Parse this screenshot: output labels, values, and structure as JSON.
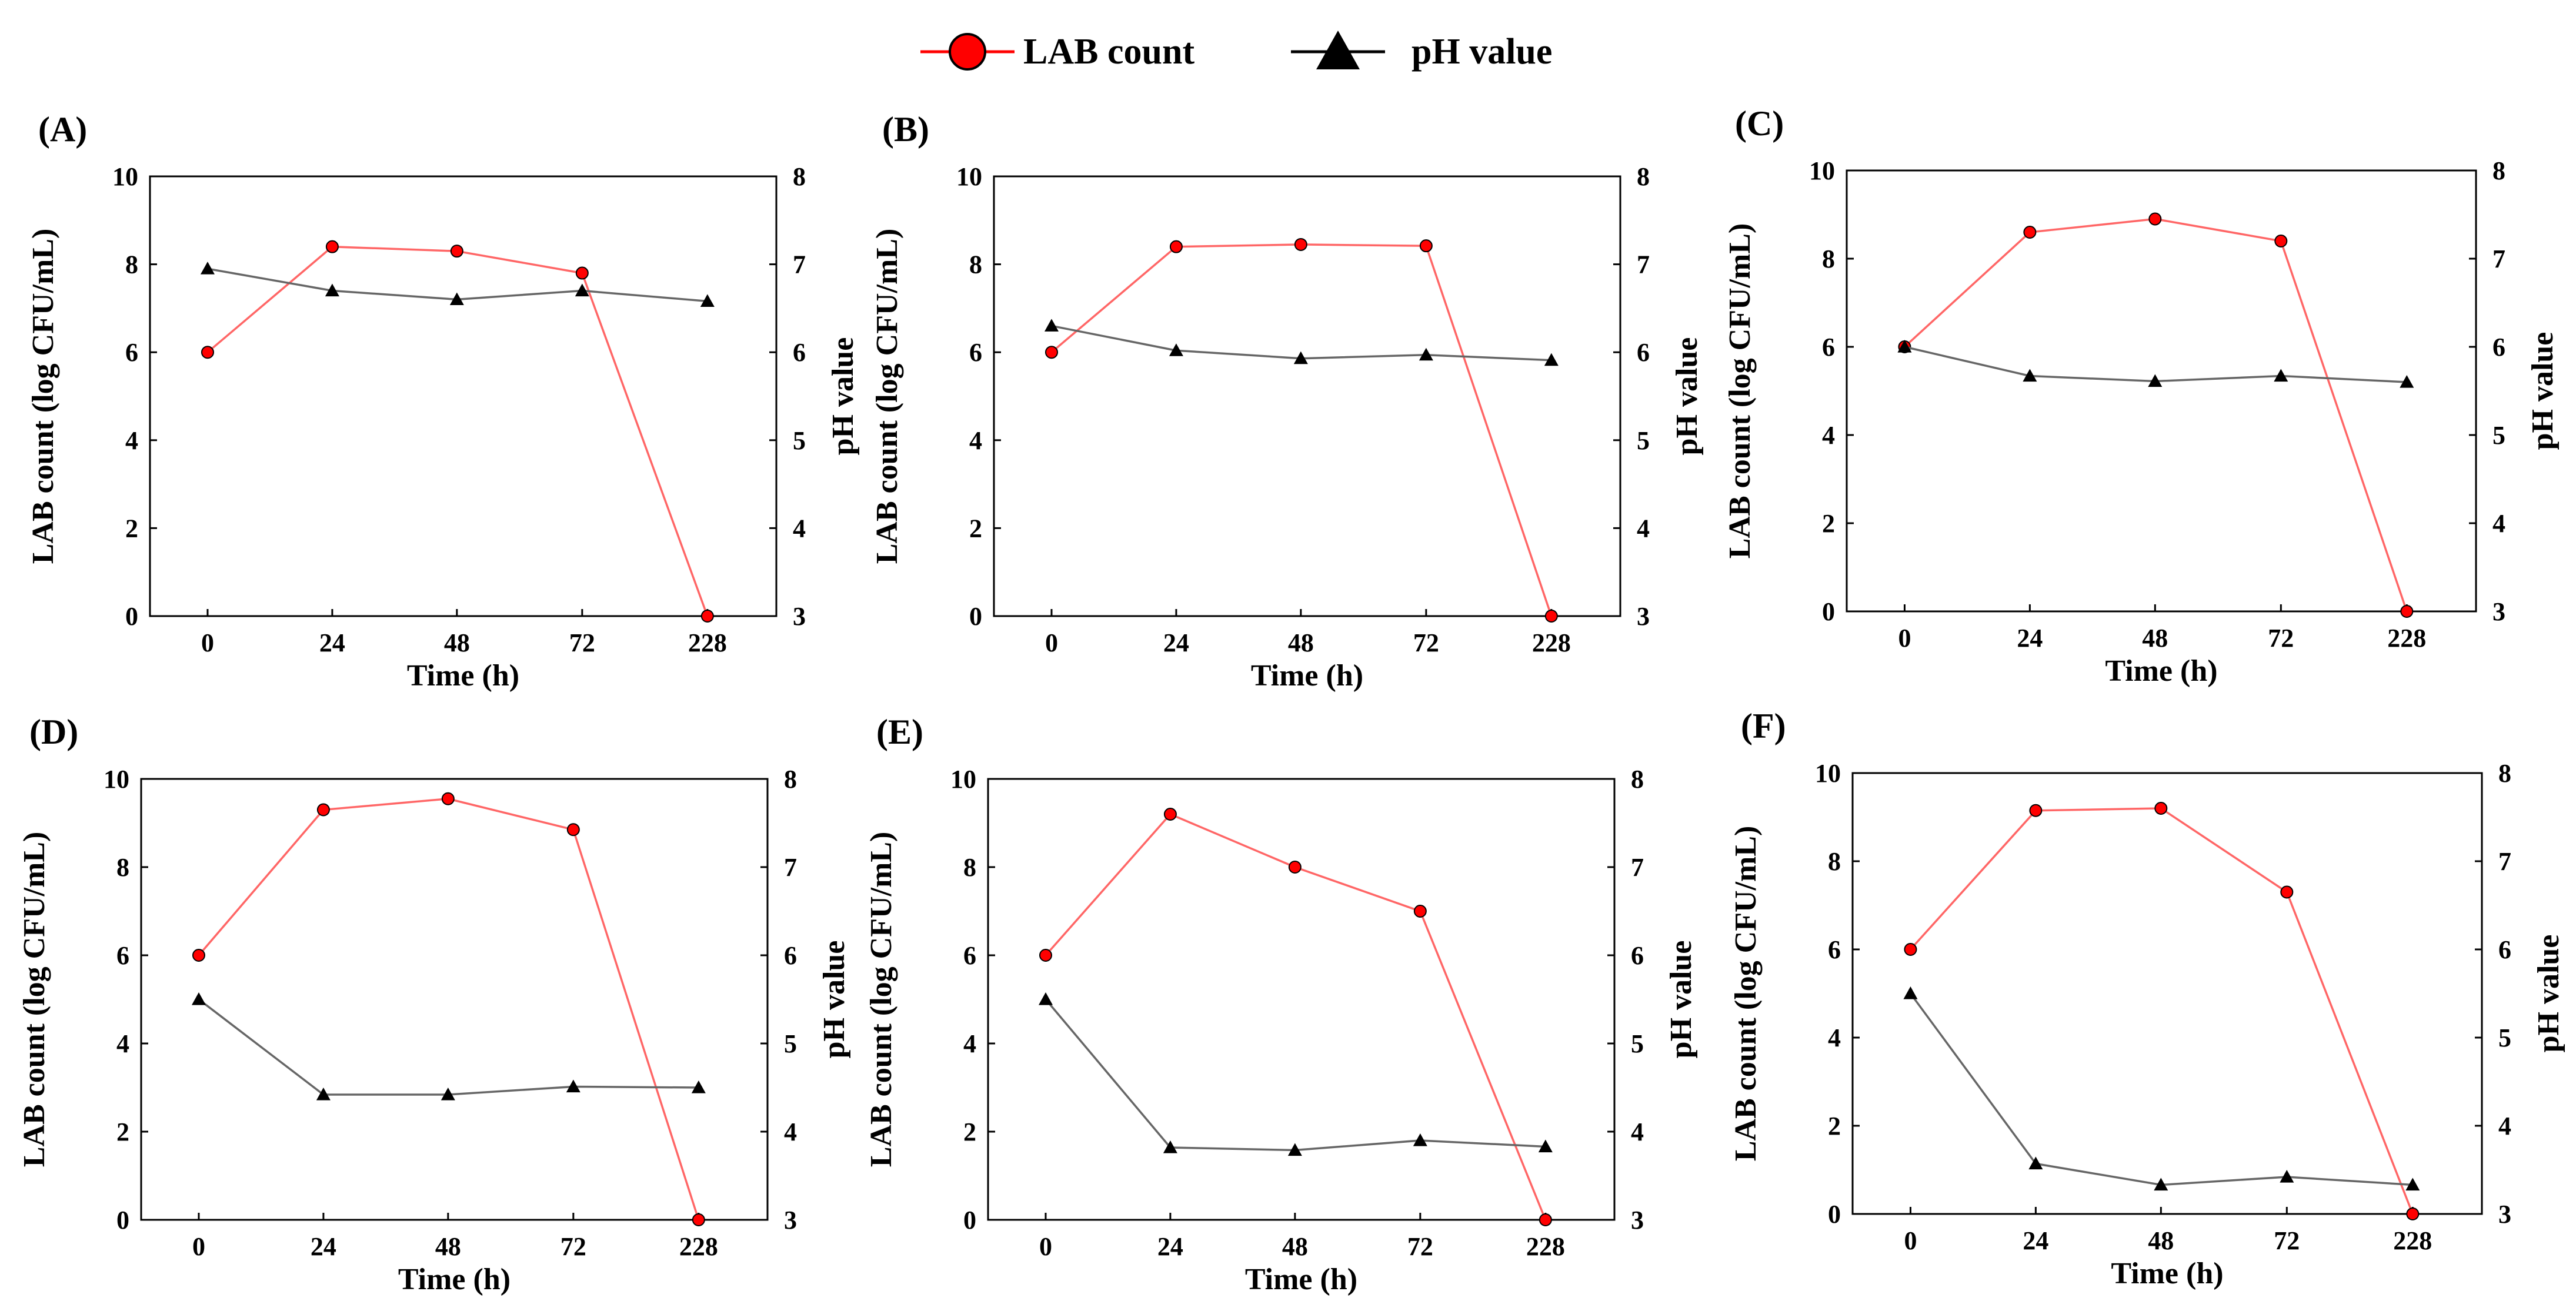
{
  "legend": {
    "lab_label": "LAB count",
    "ph_label": "pH value"
  },
  "colors": {
    "lab": "#ff0000",
    "lab_line": "#ff6666",
    "ph": "#000000",
    "ph_line": "#666666"
  },
  "chart_data": [
    {
      "type": "line",
      "panel_label": "(A)",
      "categories": [
        "0",
        "24",
        "48",
        "72",
        "228"
      ],
      "xlabel": "Time (h)",
      "ylabel": "LAB count (log CFU/mL)",
      "y2label": "pH value",
      "ylim": [
        0,
        10
      ],
      "y2lim": [
        3,
        8
      ],
      "yticks": [
        0,
        2,
        4,
        6,
        8,
        10
      ],
      "y2ticks": [
        3,
        4,
        5,
        6,
        7,
        8
      ],
      "series": [
        {
          "name": "LAB count",
          "axis": "left",
          "values": [
            6.0,
            8.4,
            8.3,
            7.8,
            0.0
          ]
        },
        {
          "name": "pH value",
          "axis": "right",
          "values": [
            6.95,
            6.7,
            6.6,
            6.7,
            6.58
          ]
        }
      ]
    },
    {
      "type": "line",
      "panel_label": "(B)",
      "categories": [
        "0",
        "24",
        "48",
        "72",
        "228"
      ],
      "xlabel": "Time (h)",
      "ylabel": "LAB count (log CFU/mL)",
      "y2label": "pH value",
      "ylim": [
        0,
        10
      ],
      "y2lim": [
        3,
        8
      ],
      "yticks": [
        0,
        2,
        4,
        6,
        8,
        10
      ],
      "y2ticks": [
        3,
        4,
        5,
        6,
        7,
        8
      ],
      "series": [
        {
          "name": "LAB count",
          "axis": "left",
          "values": [
            6.0,
            8.4,
            8.45,
            8.42,
            0.0
          ]
        },
        {
          "name": "pH value",
          "axis": "right",
          "values": [
            6.3,
            6.02,
            5.93,
            5.97,
            5.91
          ]
        }
      ]
    },
    {
      "type": "line",
      "panel_label": "(C)",
      "categories": [
        "0",
        "24",
        "48",
        "72",
        "228"
      ],
      "xlabel": "Time (h)",
      "ylabel": "LAB count (log CFU/mL)",
      "y2label": "pH value",
      "ylim": [
        0,
        10
      ],
      "y2lim": [
        3,
        8
      ],
      "yticks": [
        0,
        2,
        4,
        6,
        8,
        10
      ],
      "y2ticks": [
        3,
        4,
        5,
        6,
        7,
        8
      ],
      "series": [
        {
          "name": "LAB count",
          "axis": "left",
          "values": [
            6.0,
            8.6,
            8.9,
            8.4,
            0.0
          ]
        },
        {
          "name": "pH value",
          "axis": "right",
          "values": [
            6.0,
            5.67,
            5.61,
            5.67,
            5.6
          ]
        }
      ]
    },
    {
      "type": "line",
      "panel_label": "(D)",
      "categories": [
        "0",
        "24",
        "48",
        "72",
        "228"
      ],
      "xlabel": "Time (h)",
      "ylabel": "LAB count (log CFU/mL)",
      "y2label": "pH value",
      "ylim": [
        0,
        10
      ],
      "y2lim": [
        3,
        8
      ],
      "yticks": [
        0,
        2,
        4,
        6,
        8,
        10
      ],
      "y2ticks": [
        3,
        4,
        5,
        6,
        7,
        8
      ],
      "series": [
        {
          "name": "LAB count",
          "axis": "left",
          "values": [
            6.0,
            9.3,
            9.55,
            8.85,
            0.0
          ]
        },
        {
          "name": "pH value",
          "axis": "right",
          "values": [
            5.5,
            4.42,
            4.42,
            4.51,
            4.5
          ]
        }
      ]
    },
    {
      "type": "line",
      "panel_label": "(E)",
      "categories": [
        "0",
        "24",
        "48",
        "72",
        "228"
      ],
      "xlabel": "Time (h)",
      "ylabel": "LAB count (log CFU/mL)",
      "y2label": "pH value",
      "ylim": [
        0,
        10
      ],
      "y2lim": [
        3,
        8
      ],
      "yticks": [
        0,
        2,
        4,
        6,
        8,
        10
      ],
      "y2ticks": [
        3,
        4,
        5,
        6,
        7,
        8
      ],
      "series": [
        {
          "name": "LAB count",
          "axis": "left",
          "values": [
            6.0,
            9.2,
            8.0,
            7.0,
            0.0
          ]
        },
        {
          "name": "pH value",
          "axis": "right",
          "values": [
            5.5,
            3.82,
            3.79,
            3.9,
            3.83
          ]
        }
      ]
    },
    {
      "type": "line",
      "panel_label": "(F)",
      "categories": [
        "0",
        "24",
        "48",
        "72",
        "228"
      ],
      "xlabel": "Time (h)",
      "ylabel": "LAB count (log CFU/mL)",
      "y2label": "pH value",
      "ylim": [
        0,
        10
      ],
      "y2lim": [
        3,
        8
      ],
      "yticks": [
        0,
        2,
        4,
        6,
        8,
        10
      ],
      "y2ticks": [
        3,
        4,
        5,
        6,
        7,
        8
      ],
      "series": [
        {
          "name": "LAB count",
          "axis": "left",
          "values": [
            6.0,
            9.15,
            9.2,
            7.3,
            0.0
          ]
        },
        {
          "name": "pH value",
          "axis": "right",
          "values": [
            5.5,
            3.57,
            3.33,
            3.42,
            3.33
          ]
        }
      ]
    }
  ]
}
